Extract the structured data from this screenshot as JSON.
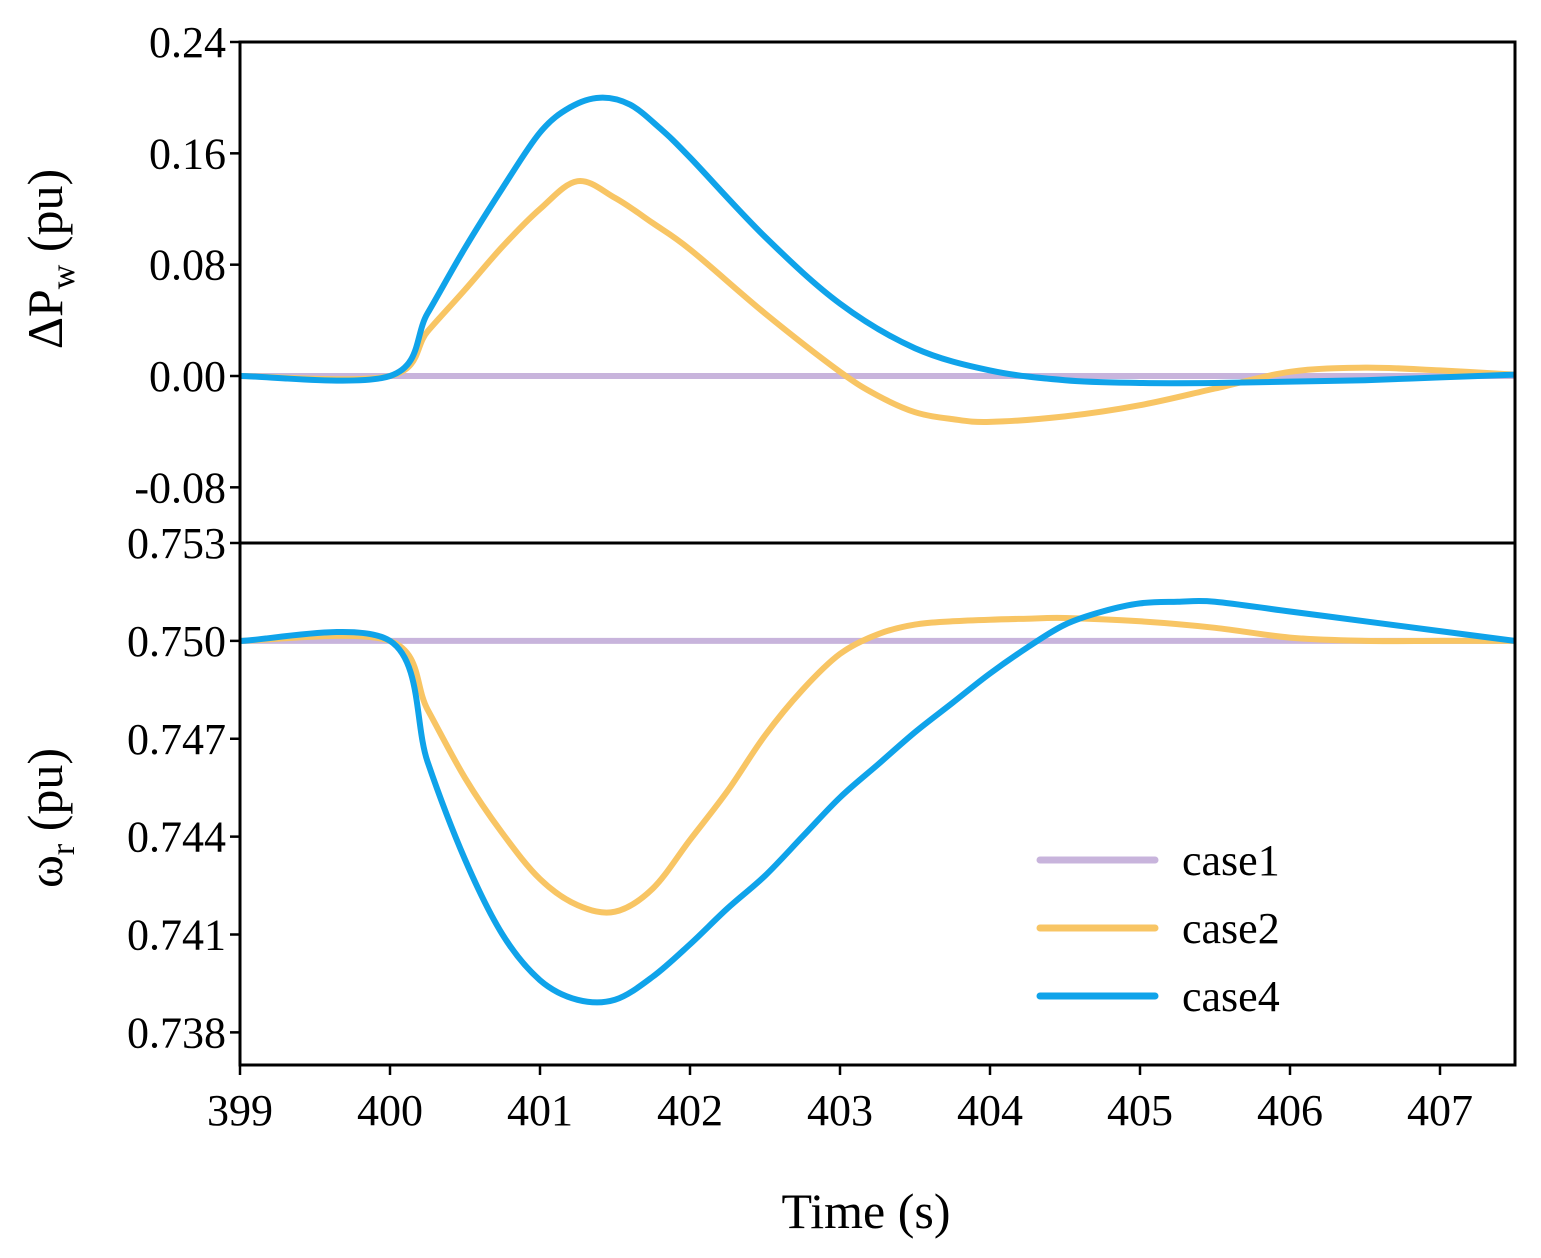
{
  "chart_data": [
    {
      "type": "line",
      "panel": "top",
      "ylabel": "ΔP",
      "ylabel_sub": "w",
      "ylabel_unit": " (pu)",
      "ylim": [
        -0.12,
        0.24
      ],
      "yticks": [
        -0.08,
        0.0,
        0.08,
        0.16,
        0.24
      ],
      "ytick_labels": [
        "-0.08",
        "0.00",
        "0.08",
        "0.16",
        "0.24"
      ],
      "xlim": [
        399,
        407.5
      ],
      "series": [
        {
          "name": "case1",
          "color": "#c8b4dc",
          "x": [
            399,
            407.5
          ],
          "y": [
            0,
            0
          ]
        },
        {
          "name": "case2",
          "color": "#f8c564",
          "x": [
            399,
            400,
            400.25,
            400.5,
            400.75,
            401,
            401.25,
            401.5,
            401.75,
            402,
            402.5,
            403,
            403.25,
            403.5,
            403.75,
            404,
            404.5,
            405,
            405.5,
            406,
            406.5,
            407,
            407.5
          ],
          "y": [
            0,
            0,
            0.032,
            0.062,
            0.093,
            0.12,
            0.14,
            0.128,
            0.11,
            0.091,
            0.045,
            0.003,
            -0.014,
            -0.026,
            -0.031,
            -0.033,
            -0.029,
            -0.021,
            -0.009,
            0.003,
            0.006,
            0.004,
            0.001
          ]
        },
        {
          "name": "case4",
          "color": "#0fa3ea",
          "x": [
            399,
            400,
            400.25,
            400.5,
            400.75,
            401,
            401.2,
            401.4,
            401.6,
            401.8,
            402,
            402.5,
            403,
            403.5,
            404,
            404.5,
            405,
            405.5,
            406,
            406.5,
            407,
            407.5
          ],
          "y": [
            0,
            0,
            0.045,
            0.092,
            0.135,
            0.175,
            0.193,
            0.2,
            0.195,
            0.178,
            0.157,
            0.1,
            0.052,
            0.02,
            0.004,
            -0.003,
            -0.005,
            -0.005,
            -0.004,
            -0.003,
            -0.001,
            0.001
          ]
        }
      ]
    },
    {
      "type": "line",
      "panel": "bottom",
      "ylabel": "ω",
      "ylabel_sub": "r",
      "ylabel_unit": " (pu)",
      "ylim": [
        0.737,
        0.753
      ],
      "yticks": [
        0.738,
        0.741,
        0.744,
        0.747,
        0.75,
        0.753
      ],
      "ytick_labels": [
        "0.738",
        "0.741",
        "0.744",
        "0.747",
        "0.750",
        "0.753"
      ],
      "xlim": [
        399,
        407.5
      ],
      "xticks": [
        399,
        400,
        401,
        402,
        403,
        404,
        405,
        406,
        407
      ],
      "xtick_labels": [
        "399",
        "400",
        "401",
        "402",
        "403",
        "404",
        "405",
        "406",
        "407"
      ],
      "xlabel": "Time (s)",
      "legend_position": "lower-right",
      "series": [
        {
          "name": "case1",
          "color": "#c8b4dc",
          "x": [
            399,
            407.5
          ],
          "y": [
            0.75,
            0.75
          ]
        },
        {
          "name": "case2",
          "color": "#f8c564",
          "x": [
            399,
            400,
            400.25,
            400.5,
            400.75,
            401,
            401.25,
            401.5,
            401.75,
            402,
            402.25,
            402.5,
            402.75,
            403,
            403.25,
            403.5,
            403.75,
            404,
            404.25,
            404.5,
            405,
            405.5,
            406,
            406.5,
            407,
            407.5
          ],
          "y": [
            0.75,
            0.75,
            0.7479,
            0.7458,
            0.7441,
            0.7427,
            0.7419,
            0.7417,
            0.7424,
            0.7439,
            0.7454,
            0.7471,
            0.7485,
            0.7496,
            0.7502,
            0.7505,
            0.7506,
            0.75065,
            0.75068,
            0.7507,
            0.7506,
            0.7504,
            0.7501,
            0.75,
            0.75,
            0.75
          ]
        },
        {
          "name": "case4",
          "color": "#0fa3ea",
          "x": [
            399,
            400,
            400.25,
            400.5,
            400.75,
            401,
            401.25,
            401.5,
            401.75,
            402,
            402.25,
            402.5,
            402.75,
            403,
            403.25,
            403.5,
            403.75,
            404,
            404.25,
            404.5,
            404.75,
            405,
            405.25,
            405.5,
            406,
            406.5,
            407,
            407.5
          ],
          "y": [
            0.75,
            0.75,
            0.7463,
            0.7433,
            0.741,
            0.7396,
            0.739,
            0.739,
            0.7397,
            0.7407,
            0.7418,
            0.7428,
            0.744,
            0.7452,
            0.7462,
            0.7472,
            0.7481,
            0.749,
            0.7498,
            0.7505,
            0.7509,
            0.75115,
            0.7512,
            0.7512,
            0.7509,
            0.7506,
            0.7503,
            0.75
          ]
        }
      ]
    }
  ],
  "legend": {
    "entries": [
      {
        "label": "case1",
        "color": "#c8b4dc"
      },
      {
        "label": "case2",
        "color": "#f8c564"
      },
      {
        "label": "case4",
        "color": "#0fa3ea"
      }
    ]
  }
}
